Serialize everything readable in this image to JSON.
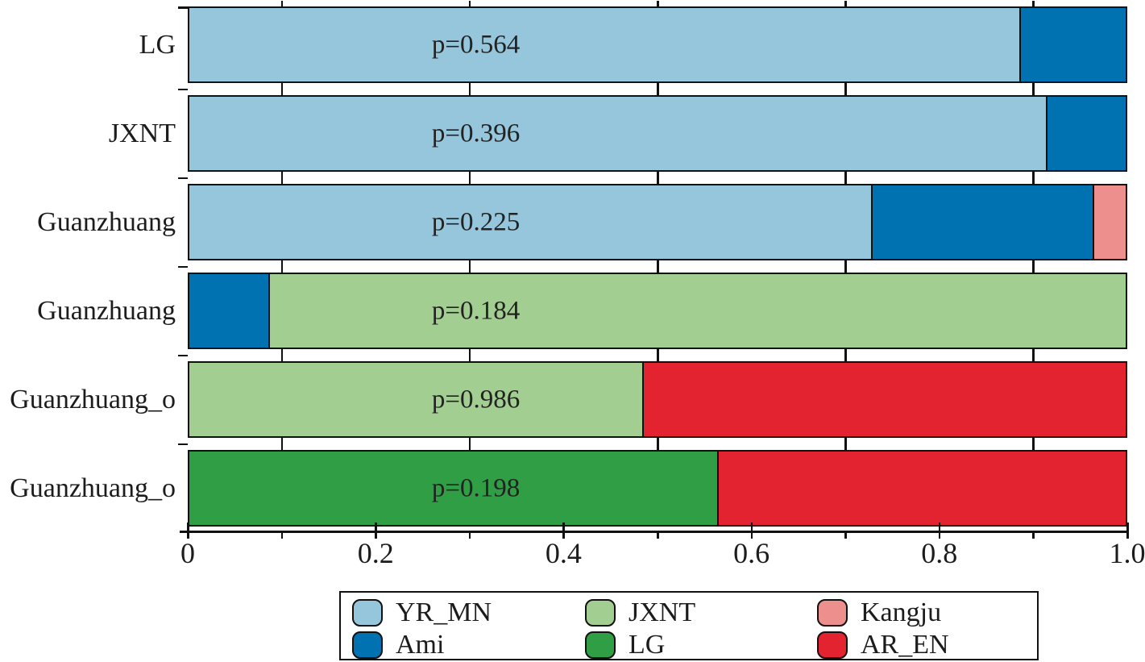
{
  "figure": {
    "background": "#ffffff",
    "frame_color": "#111111",
    "text_color": "#1c1c1c"
  },
  "chart_data": {
    "type": "bar",
    "orientation": "horizontal-stacked",
    "x_axis": {
      "range": [
        0,
        1.0
      ],
      "minor_tick_step": 0.1,
      "tick_label_values": [
        0,
        0.2,
        0.4,
        0.6,
        0.8,
        1.0
      ],
      "tick_labels": [
        "0",
        "0.2",
        "0.4",
        "0.6",
        "0.8",
        "1.0"
      ]
    },
    "grid": false,
    "legend_position": "bottom",
    "palette": {
      "YR_MN": "#96c6dc",
      "Ami": "#0072b2",
      "JXNT": "#a2cf91",
      "LG": "#2f9e44",
      "Kangju": "#ec8f8d",
      "AR_EN": "#e42330"
    },
    "rows": [
      {
        "label": "LG",
        "p_label": "p=0.564",
        "segments": [
          {
            "series": "YR_MN",
            "value": 0.886
          },
          {
            "series": "Ami",
            "value": 0.114
          }
        ]
      },
      {
        "label": "JXNT",
        "p_label": "p=0.396",
        "segments": [
          {
            "series": "YR_MN",
            "value": 0.915
          },
          {
            "series": "Ami",
            "value": 0.085
          }
        ]
      },
      {
        "label": "Guanzhuang",
        "p_label": "p=0.225",
        "segments": [
          {
            "series": "YR_MN",
            "value": 0.728
          },
          {
            "series": "Ami",
            "value": 0.237
          },
          {
            "series": "Kangju",
            "value": 0.035
          }
        ]
      },
      {
        "label": "Guanzhuang",
        "p_label": "p=0.184",
        "segments": [
          {
            "series": "Ami",
            "value": 0.084
          },
          {
            "series": "JXNT",
            "value": 0.916
          }
        ]
      },
      {
        "label": "Guanzhuang_o",
        "p_label": "p=0.986",
        "segments": [
          {
            "series": "JXNT",
            "value": 0.484
          },
          {
            "series": "AR_EN",
            "value": 0.516
          }
        ]
      },
      {
        "label": "Guanzhuang_o",
        "p_label": "p=0.198",
        "segments": [
          {
            "series": "LG",
            "value": 0.564
          },
          {
            "series": "AR_EN",
            "value": 0.436
          }
        ]
      }
    ],
    "legend": {
      "columns": [
        [
          "YR_MN",
          "Ami"
        ],
        [
          "JXNT",
          "LG"
        ],
        [
          "Kangju",
          "AR_EN"
        ]
      ]
    }
  }
}
